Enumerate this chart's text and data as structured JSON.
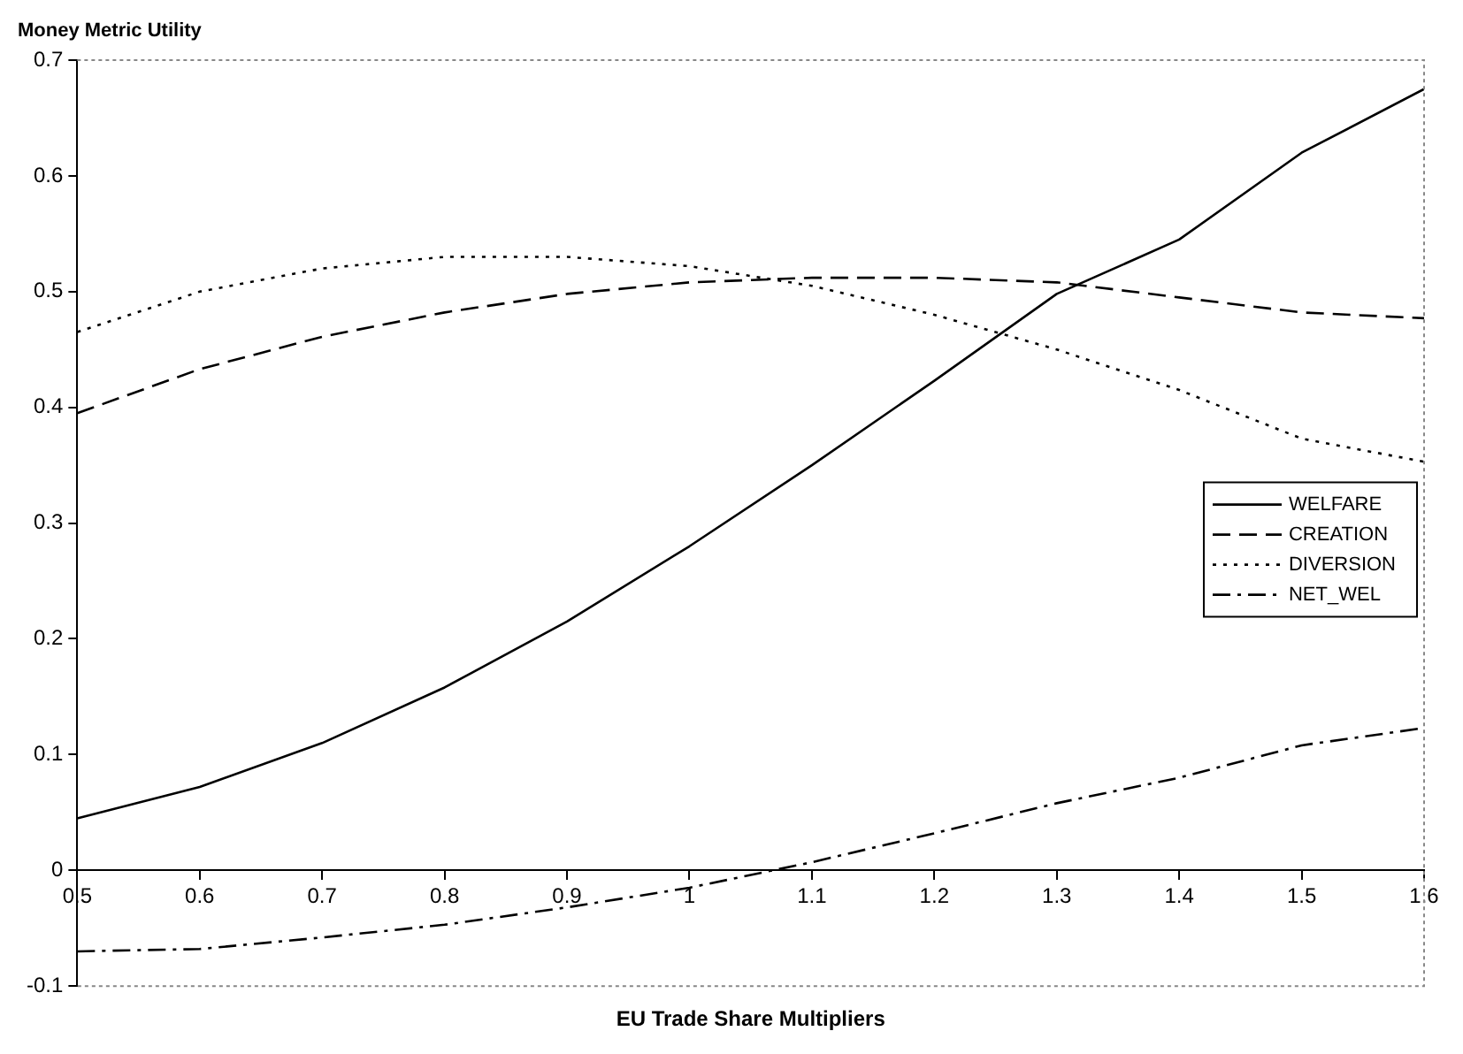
{
  "chart_data": {
    "type": "line",
    "ylabel": "Money Metric Utility",
    "xlabel": "EU Trade Share Multipliers",
    "x": [
      0.5,
      0.6,
      0.7,
      0.8,
      0.9,
      1.0,
      1.1,
      1.2,
      1.3,
      1.4,
      1.5,
      1.6
    ],
    "xlim": [
      0.5,
      1.6
    ],
    "xticks": [
      0.5,
      0.6,
      0.7,
      0.8,
      0.9,
      1,
      1.1,
      1.2,
      1.3,
      1.4,
      1.5,
      1.6
    ],
    "ylim": [
      -0.1,
      0.7
    ],
    "yticks": [
      -0.1,
      0,
      0.1,
      0.2,
      0.3,
      0.4,
      0.5,
      0.6,
      0.7
    ],
    "legend": "right",
    "grid": false,
    "marker": "none",
    "series": [
      {
        "name": "WELFARE",
        "color": "#000000",
        "line_style": "solid",
        "values": [
          0.045,
          0.072,
          0.11,
          0.158,
          0.215,
          0.28,
          0.35,
          0.423,
          0.498,
          0.545,
          0.62,
          0.675
        ]
      },
      {
        "name": "CREATION",
        "color": "#000000",
        "line_style": "dashed",
        "values": [
          0.395,
          0.433,
          0.461,
          0.482,
          0.498,
          0.508,
          0.512,
          0.512,
          0.508,
          0.495,
          0.482,
          0.477
        ]
      },
      {
        "name": "DIVERSION",
        "color": "#000000",
        "line_style": "dotted",
        "values": [
          0.465,
          0.5,
          0.52,
          0.53,
          0.53,
          0.522,
          0.505,
          0.48,
          0.45,
          0.415,
          0.373,
          0.353
        ]
      },
      {
        "name": "NET_WEL",
        "color": "#000000",
        "line_style": "dashdot",
        "values": [
          -0.07,
          -0.068,
          -0.058,
          -0.047,
          -0.032,
          -0.015,
          0.007,
          0.032,
          0.058,
          0.08,
          0.108,
          0.123
        ]
      }
    ]
  }
}
